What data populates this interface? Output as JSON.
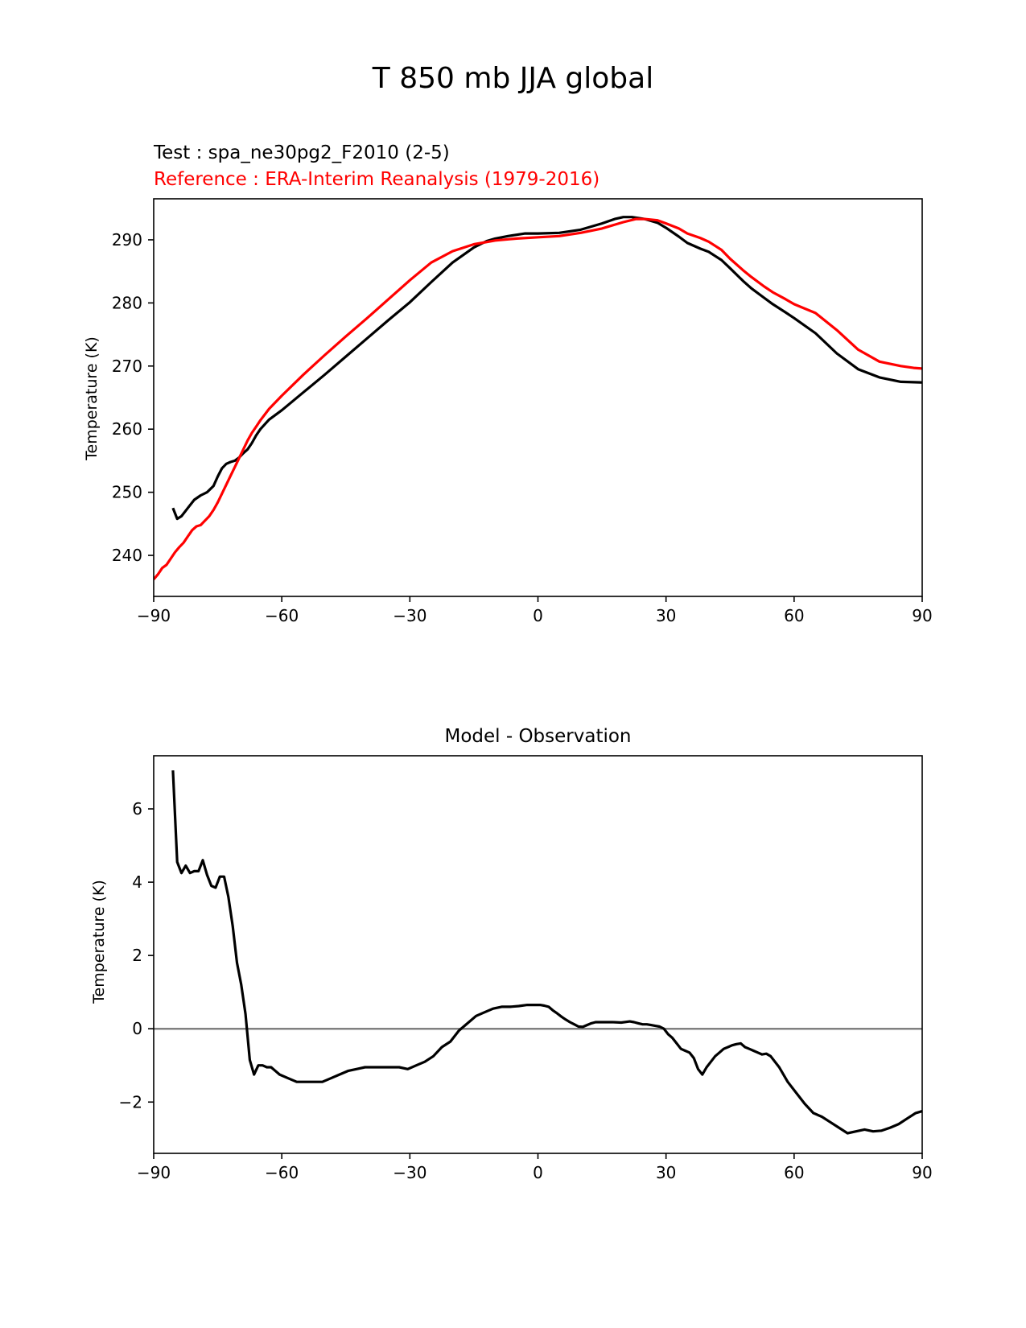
{
  "figure": {
    "title": "T 850 mb JJA global"
  },
  "chart_data": [
    {
      "type": "line",
      "test_label": "Test : spa_ne30pg2_F2010 (2-5)",
      "reference_label": "Reference : ERA-Interim Reanalysis (1979-2016)",
      "xlabel": "",
      "ylabel": "Temperature (K)",
      "xlim": [
        -90,
        90
      ],
      "ylim": [
        233.5,
        296.5
      ],
      "xticks": [
        -90,
        -60,
        -30,
        0,
        30,
        60,
        90
      ],
      "xtick_labels": [
        "−90",
        "−60",
        "−30",
        "0",
        "30",
        "60",
        "90"
      ],
      "yticks": [
        240,
        250,
        260,
        270,
        280,
        290
      ],
      "ytick_labels": [
        "240",
        "250",
        "260",
        "270",
        "280",
        "290"
      ],
      "grid": false,
      "series": [
        {
          "color": "#000000",
          "x": [
            -85.5,
            -84.5,
            -83.5,
            -82,
            -80.5,
            -79,
            -77.5,
            -76,
            -75,
            -74,
            -73,
            -72,
            -71,
            -70,
            -69,
            -68,
            -67,
            -66,
            -65,
            -63,
            -60,
            -55,
            -50,
            -45,
            -40,
            -35,
            -30,
            -25,
            -20,
            -15,
            -12,
            -10,
            -7,
            -5,
            -3,
            0,
            5,
            10,
            15,
            18,
            20,
            22,
            25,
            28,
            30,
            33,
            35,
            38,
            40,
            43,
            45,
            48,
            50,
            53,
            55,
            58,
            60,
            65,
            70,
            75,
            80,
            85,
            90
          ],
          "y": [
            247.5,
            245.8,
            246.2,
            247.5,
            248.8,
            249.5,
            250,
            251,
            252.5,
            253.8,
            254.5,
            254.8,
            255,
            255.5,
            256.2,
            256.8,
            257.8,
            259,
            260,
            261.5,
            263,
            265.8,
            268.6,
            271.5,
            274.4,
            277.3,
            280.1,
            283.3,
            286.4,
            288.8,
            289.8,
            290.2,
            290.6,
            290.8,
            291,
            291,
            291.1,
            291.6,
            292.6,
            293.3,
            293.6,
            293.6,
            293.3,
            292.7,
            291.9,
            290.5,
            289.5,
            288.6,
            288.1,
            286.8,
            285.5,
            283.5,
            282.3,
            280.8,
            279.8,
            278.5,
            277.6,
            275.2,
            272,
            269.5,
            268.2,
            267.5,
            267.4
          ]
        },
        {
          "color": "#ff0000",
          "x": [
            -90,
            -89,
            -88,
            -87,
            -86,
            -85,
            -84,
            -83,
            -82,
            -81,
            -80,
            -79,
            -78,
            -77,
            -76,
            -75,
            -74,
            -73,
            -72,
            -71,
            -70,
            -69,
            -68,
            -67,
            -66,
            -65,
            -63,
            -60,
            -55,
            -50,
            -45,
            -40,
            -35,
            -30,
            -25,
            -20,
            -15,
            -10,
            -5,
            0,
            5,
            10,
            15,
            20,
            23,
            25,
            28,
            30,
            33,
            35,
            38,
            40,
            43,
            45,
            48,
            50,
            53,
            55,
            58,
            60,
            65,
            70,
            75,
            80,
            85,
            88,
            90
          ],
          "y": [
            236.2,
            237,
            238,
            238.5,
            239.5,
            240.5,
            241.3,
            242,
            243,
            244,
            244.6,
            244.8,
            245.5,
            246.2,
            247.2,
            248.4,
            249.8,
            251.2,
            252.6,
            254,
            255.4,
            256.8,
            258.2,
            259.4,
            260.4,
            261.4,
            263.2,
            265.3,
            268.6,
            271.7,
            274.7,
            277.6,
            280.6,
            283.6,
            286.4,
            288.2,
            289.3,
            289.9,
            290.2,
            290.4,
            290.6,
            291.1,
            291.8,
            292.8,
            293.3,
            293.3,
            293.1,
            292.6,
            291.8,
            291,
            290.3,
            289.7,
            288.4,
            287,
            285.2,
            284.1,
            282.6,
            281.7,
            280.6,
            279.8,
            278.4,
            275.7,
            272.6,
            270.7,
            270,
            269.7,
            269.6
          ]
        }
      ]
    },
    {
      "type": "line",
      "title": "Model - Observation",
      "xlabel": "",
      "ylabel": "Temperature (K)",
      "xlim": [
        -90,
        90
      ],
      "ylim": [
        -3.4,
        7.45
      ],
      "xticks": [
        -90,
        -60,
        -30,
        0,
        30,
        60,
        90
      ],
      "xtick_labels": [
        "−90",
        "−60",
        "−30",
        "0",
        "30",
        "60",
        "90"
      ],
      "yticks": [
        -2,
        0,
        2,
        4,
        6
      ],
      "ytick_labels": [
        "−2",
        "0",
        "2",
        "4",
        "6"
      ],
      "grid": false,
      "reference_line": {
        "y": 0,
        "color": "#808080"
      },
      "series": [
        {
          "color": "#000000",
          "x": [
            -85.5,
            -84.5,
            -83.5,
            -82.5,
            -81.5,
            -80.5,
            -79.5,
            -78.5,
            -77.5,
            -76.5,
            -75.5,
            -74.5,
            -73.5,
            -72.5,
            -71.5,
            -70.5,
            -69.5,
            -68.5,
            -67.5,
            -66.5,
            -65.5,
            -64.5,
            -63.5,
            -62.5,
            -61.5,
            -60.5,
            -58.5,
            -56.5,
            -54.5,
            -52.5,
            -50.5,
            -48.5,
            -46.5,
            -44.5,
            -42.5,
            -40.5,
            -38.5,
            -36.5,
            -34.5,
            -32.5,
            -30.5,
            -28.5,
            -26.5,
            -24.5,
            -22.5,
            -20.5,
            -18.5,
            -16.5,
            -14.5,
            -12.5,
            -10.5,
            -8.5,
            -6.5,
            -4.5,
            -2.5,
            -0.5,
            0.5,
            1.5,
            2.5,
            3.5,
            4.5,
            5.5,
            6.5,
            7.5,
            8.5,
            9.5,
            10.5,
            11.5,
            12.5,
            13.5,
            15.5,
            17.5,
            19.5,
            21.5,
            22.5,
            23.5,
            24.5,
            25.5,
            26.5,
            27.5,
            28.5,
            29.5,
            30.5,
            31.5,
            32.5,
            33.5,
            34.5,
            35.5,
            36.5,
            37.5,
            38.5,
            39.5,
            40.5,
            41.5,
            42.5,
            43.5,
            44.5,
            45.5,
            46.5,
            47.5,
            48.5,
            49.5,
            50.5,
            51.5,
            52.5,
            53.5,
            54.5,
            56.5,
            58.5,
            60.5,
            62.5,
            64.5,
            66.5,
            68.5,
            70.5,
            72.5,
            74.5,
            76.5,
            78.5,
            80.5,
            82.5,
            84.5,
            86.5,
            88.5,
            90
          ],
          "y": [
            7.05,
            4.55,
            4.25,
            4.45,
            4.25,
            4.3,
            4.3,
            4.6,
            4.2,
            3.9,
            3.85,
            4.15,
            4.15,
            3.6,
            2.8,
            1.8,
            1.2,
            0.4,
            -0.85,
            -1.25,
            -1.0,
            -1.0,
            -1.05,
            -1.05,
            -1.15,
            -1.25,
            -1.35,
            -1.45,
            -1.45,
            -1.45,
            -1.45,
            -1.35,
            -1.25,
            -1.15,
            -1.1,
            -1.05,
            -1.05,
            -1.05,
            -1.05,
            -1.05,
            -1.1,
            -1.0,
            -0.9,
            -0.75,
            -0.5,
            -0.35,
            -0.05,
            0.15,
            0.35,
            0.45,
            0.55,
            0.6,
            0.6,
            0.62,
            0.65,
            0.65,
            0.65,
            0.63,
            0.6,
            0.5,
            0.42,
            0.33,
            0.25,
            0.18,
            0.12,
            0.06,
            0.05,
            0.1,
            0.15,
            0.18,
            0.18,
            0.18,
            0.17,
            0.2,
            0.18,
            0.15,
            0.12,
            0.12,
            0.1,
            0.08,
            0.06,
            0.0,
            -0.15,
            -0.25,
            -0.4,
            -0.55,
            -0.6,
            -0.65,
            -0.8,
            -1.1,
            -1.25,
            -1.05,
            -0.9,
            -0.75,
            -0.65,
            -0.55,
            -0.5,
            -0.45,
            -0.42,
            -0.4,
            -0.5,
            -0.55,
            -0.6,
            -0.65,
            -0.7,
            -0.68,
            -0.75,
            -1.05,
            -1.45,
            -1.75,
            -2.05,
            -2.3,
            -2.4,
            -2.55,
            -2.7,
            -2.85,
            -2.8,
            -2.75,
            -2.8,
            -2.78,
            -2.7,
            -2.6,
            -2.45,
            -2.3,
            -2.25
          ]
        }
      ]
    }
  ]
}
